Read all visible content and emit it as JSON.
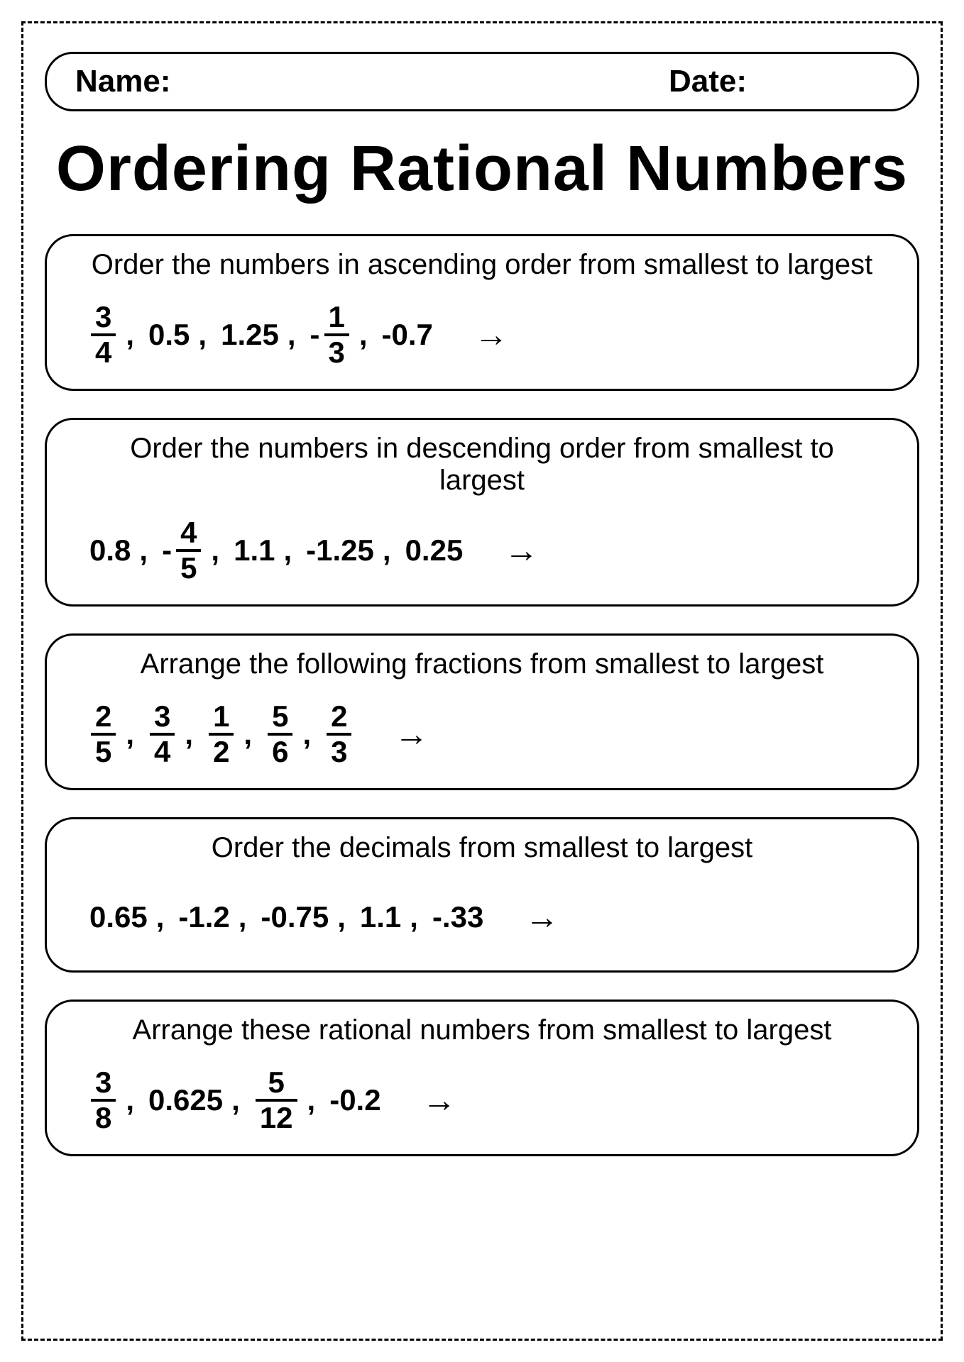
{
  "header": {
    "name_label": "Name:",
    "date_label": "Date:"
  },
  "title": "Ordering Rational Numbers",
  "arrow_glyph": "→",
  "problems": [
    {
      "instruction": "Order the numbers in ascending order from smallest to largest",
      "items": [
        {
          "type": "frac",
          "num": "3",
          "den": "4"
        },
        {
          "type": "text",
          "value": "0.5"
        },
        {
          "type": "text",
          "value": "1.25"
        },
        {
          "type": "negfrac",
          "num": "1",
          "den": "3"
        },
        {
          "type": "text",
          "value": "-0.7"
        }
      ]
    },
    {
      "instruction": "Order the numbers in descending order from smallest to largest",
      "items": [
        {
          "type": "text",
          "value": "0.8"
        },
        {
          "type": "negfrac",
          "num": "4",
          "den": "5"
        },
        {
          "type": "text",
          "value": "1.1"
        },
        {
          "type": "text",
          "value": "-1.25"
        },
        {
          "type": "text",
          "value": "0.25"
        }
      ]
    },
    {
      "instruction": "Arrange the following fractions from smallest to largest",
      "items": [
        {
          "type": "frac",
          "num": "2",
          "den": "5"
        },
        {
          "type": "frac",
          "num": "3",
          "den": "4"
        },
        {
          "type": "frac",
          "num": "1",
          "den": "2"
        },
        {
          "type": "frac",
          "num": "5",
          "den": "6"
        },
        {
          "type": "frac",
          "num": "2",
          "den": "3"
        }
      ]
    },
    {
      "instruction": "Order the decimals from smallest to largest",
      "items": [
        {
          "type": "text",
          "value": "0.65"
        },
        {
          "type": "text",
          "value": "-1.2"
        },
        {
          "type": "text",
          "value": "-0.75"
        },
        {
          "type": "text",
          "value": "1.1"
        },
        {
          "type": "text",
          "value": "-.33"
        }
      ]
    },
    {
      "instruction": "Arrange these rational numbers from smallest to largest",
      "items": [
        {
          "type": "frac",
          "num": "3",
          "den": "8"
        },
        {
          "type": "text",
          "value": "0.625"
        },
        {
          "type": "frac",
          "num": "5",
          "den": "12"
        },
        {
          "type": "text",
          "value": "-0.2"
        }
      ]
    }
  ]
}
